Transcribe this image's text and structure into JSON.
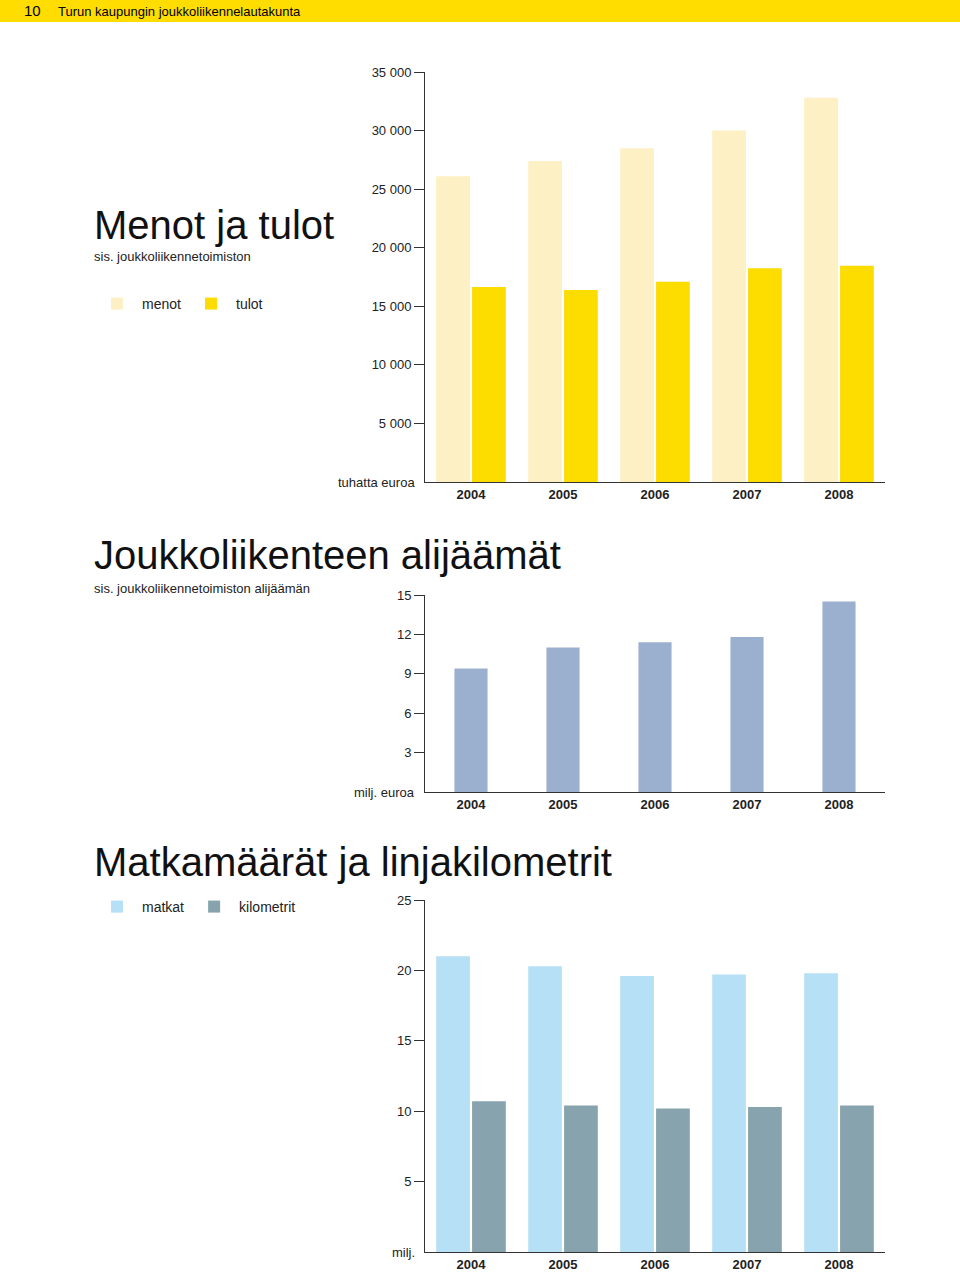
{
  "page": {
    "number": "10",
    "header": "Turun kaupungin joukkoliikennelautakunta"
  },
  "chart_data": [
    {
      "type": "bar",
      "title": "Menot ja tulot",
      "subtitle": "sis. joukkoliikennetoimiston",
      "y_label": "tuhatta euroa",
      "categories": [
        "2004",
        "2005",
        "2006",
        "2007",
        "2008"
      ],
      "series": [
        {
          "name": "menot",
          "color": "#fdf0c4",
          "values": [
            26100,
            27400,
            28500,
            30000,
            32800
          ]
        },
        {
          "name": "tulot",
          "color": "#fddc00",
          "values": [
            16650,
            16400,
            17100,
            18250,
            18450
          ]
        }
      ],
      "ylim": [
        0,
        35000
      ],
      "yticks": [
        {
          "value": 5000,
          "label": "5 000"
        },
        {
          "value": 10000,
          "label": "10 000"
        },
        {
          "value": 15000,
          "label": "15 000"
        },
        {
          "value": 20000,
          "label": "20 000"
        },
        {
          "value": 25000,
          "label": "25 000"
        },
        {
          "value": 30000,
          "label": "30 000"
        },
        {
          "value": 35000,
          "label": "35 000"
        }
      ],
      "grid": false,
      "legend": "left"
    },
    {
      "type": "bar",
      "title": "Joukkoliikenteen alijäämät",
      "subtitle": "sis. joukkoliikennetoimiston alijäämän",
      "y_label": "milj. euroa",
      "categories": [
        "2004",
        "2005",
        "2006",
        "2007",
        "2008"
      ],
      "values": [
        9.4,
        11.0,
        11.4,
        11.8,
        14.5
      ],
      "color": "#9bb0cf",
      "ylim": [
        0,
        15
      ],
      "yticks": [
        3,
        6,
        9,
        12,
        15
      ],
      "grid": false
    },
    {
      "type": "bar",
      "title": "Matkamäärät ja linjakilometrit",
      "y_label": "milj.",
      "categories": [
        "2004",
        "2005",
        "2006",
        "2007",
        "2008"
      ],
      "series": [
        {
          "name": "matkat",
          "color": "#b6e0f5",
          "values": [
            21.0,
            20.3,
            19.6,
            19.7,
            19.8
          ]
        },
        {
          "name": "kilometrit",
          "color": "#87a3ae",
          "values": [
            10.7,
            10.4,
            10.2,
            10.3,
            10.4
          ]
        }
      ],
      "ylim": [
        0,
        25
      ],
      "yticks": [
        5,
        10,
        15,
        20,
        25
      ],
      "grid": false,
      "legend": "left"
    }
  ]
}
